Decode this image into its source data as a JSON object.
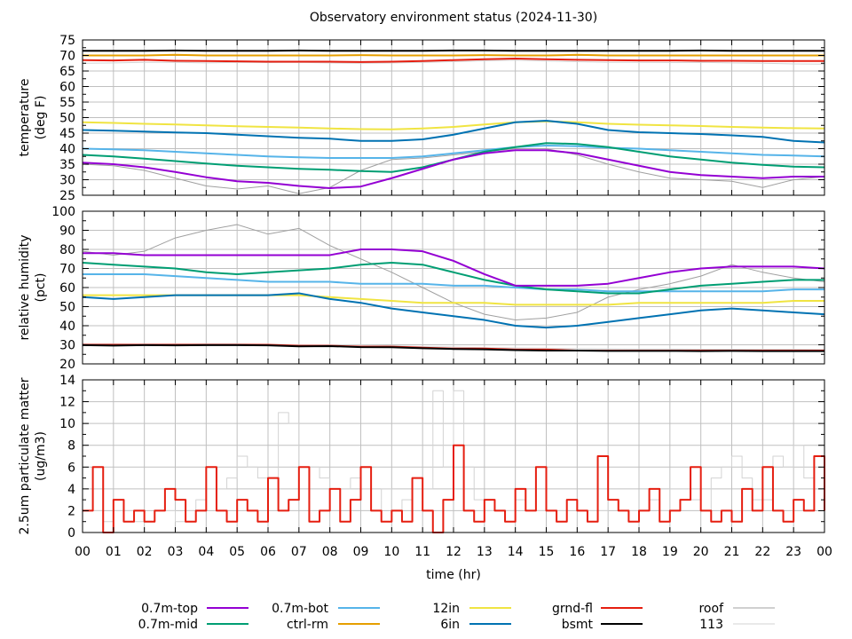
{
  "chart_data": {
    "title": "Observatory environment status (2024-11-30)",
    "xlabel": "time (hr)",
    "x_ticks": [
      "00",
      "01",
      "02",
      "03",
      "04",
      "05",
      "06",
      "07",
      "08",
      "09",
      "10",
      "11",
      "12",
      "13",
      "14",
      "15",
      "16",
      "17",
      "18",
      "19",
      "20",
      "21",
      "22",
      "23",
      "00"
    ],
    "xlim": [
      0,
      24
    ],
    "grid": true,
    "legend_placement": "bottom",
    "legend": [
      {
        "name": "0.7m-top",
        "color": "#9400d3"
      },
      {
        "name": "0.7m-mid",
        "color": "#009e73"
      },
      {
        "name": "0.7m-bot",
        "color": "#56b4e9"
      },
      {
        "name": "ctrl-rm",
        "color": "#e69f00"
      },
      {
        "name": "12in",
        "color": "#f0e442"
      },
      {
        "name": "6in",
        "color": "#0072b2"
      },
      {
        "name": "grnd-fl",
        "color": "#e51e10"
      },
      {
        "name": "bsmt",
        "color": "#000000"
      },
      {
        "name": "roof",
        "color": "#a0a0a0"
      },
      {
        "name": "113",
        "color": "#d3d3d3"
      }
    ],
    "panels": [
      {
        "type": "line",
        "ylabel": [
          "temperature",
          "(deg F)"
        ],
        "ylim": [
          25,
          75
        ],
        "yticks": [
          25,
          30,
          35,
          40,
          45,
          50,
          55,
          60,
          65,
          70,
          75
        ],
        "series": [
          {
            "name": "113",
            "values": [
              67.5,
              67.6,
              67.8,
              67.8,
              67.6,
              67.8,
              67.7,
              67.8,
              67.6,
              67.5,
              67.6,
              67.8,
              68,
              68.3,
              68.5,
              68.2,
              68,
              67.8,
              67.8,
              67.7,
              67.8,
              67.6,
              67.5,
              67.3,
              67.2
            ]
          },
          {
            "name": "roof",
            "values": [
              35,
              34.5,
              33,
              30.5,
              28,
              27,
              28,
              25.5,
              27.5,
              33,
              36.5,
              37,
              38,
              39,
              40,
              40,
              38,
              35,
              32.5,
              30.5,
              30,
              29.5,
              27.5,
              30,
              31
            ]
          },
          {
            "name": "bsmt",
            "values": [
              71.5,
              71.5,
              71.5,
              71.6,
              71.5,
              71.5,
              71.5,
              71.6,
              71.5,
              71.5,
              71.5,
              71.5,
              71.6,
              71.6,
              71.5,
              71.5,
              71.5,
              71.5,
              71.5,
              71.5,
              71.6,
              71.5,
              71.5,
              71.5,
              71.5
            ]
          },
          {
            "name": "ctrl-rm",
            "values": [
              70,
              70,
              70,
              70.2,
              70,
              70,
              70,
              70,
              70,
              70.1,
              70,
              70,
              70,
              70.1,
              70,
              70,
              70.2,
              70,
              70,
              70,
              70,
              70,
              70,
              70,
              70
            ]
          },
          {
            "name": "grnd-fl",
            "values": [
              68.5,
              68.4,
              68.6,
              68.3,
              68.2,
              68.1,
              68,
              68,
              68,
              67.9,
              68,
              68.2,
              68.5,
              68.8,
              69,
              68.8,
              68.6,
              68.5,
              68.4,
              68.4,
              68.3,
              68.3,
              68.2,
              68.2,
              68.2
            ]
          },
          {
            "name": "12in",
            "values": [
              48.5,
              48.3,
              48,
              47.8,
              47.5,
              47.2,
              47,
              46.8,
              46.5,
              46.3,
              46.2,
              46.5,
              47,
              47.8,
              48.5,
              48.8,
              48.5,
              48,
              47.7,
              47.5,
              47.3,
              47,
              46.8,
              46.6,
              46.5
            ]
          },
          {
            "name": "6in",
            "values": [
              46,
              45.8,
              45.5,
              45.2,
              45,
              44.5,
              44,
              43.5,
              43.2,
              42.5,
              42.5,
              43,
              44.5,
              46.5,
              48.5,
              49,
              48,
              46,
              45.3,
              45,
              44.7,
              44.3,
              43.8,
              42.5,
              42
            ]
          },
          {
            "name": "0.7m-bot",
            "values": [
              40,
              39.8,
              39.5,
              39,
              38.5,
              38,
              37.5,
              37.2,
              37,
              37,
              37,
              37.5,
              38.5,
              39.5,
              40.5,
              41,
              40.8,
              40.3,
              40,
              39.5,
              39,
              38.5,
              38,
              37.8,
              37.5
            ]
          },
          {
            "name": "0.7m-mid",
            "values": [
              38,
              37.5,
              36.8,
              36,
              35.2,
              34.5,
              34,
              33.5,
              33.2,
              32.8,
              32.5,
              34,
              36.5,
              39,
              40.5,
              41.8,
              41.5,
              40.5,
              39,
              37.5,
              36.5,
              35.5,
              34.8,
              34.2,
              34
            ]
          },
          {
            "name": "0.7m-top",
            "values": [
              35.5,
              35,
              34,
              32.5,
              30.8,
              29.5,
              29,
              28,
              27.3,
              27.8,
              30.5,
              33.5,
              36.5,
              38.5,
              39.5,
              39.5,
              38.5,
              36.5,
              34.5,
              32.5,
              31.5,
              31,
              30.5,
              31,
              31
            ]
          }
        ]
      },
      {
        "type": "line",
        "ylabel": [
          "relative humidity",
          "(pct)"
        ],
        "ylim": [
          20,
          100
        ],
        "yticks": [
          20,
          30,
          40,
          50,
          60,
          70,
          80,
          90,
          100
        ],
        "series": [
          {
            "name": "113",
            "values": [
              30.5,
              30.5,
              30.4,
              30.5,
              30.5,
              30.5,
              30.3,
              30,
              30,
              29.8,
              29.5,
              29,
              28.8,
              28.5,
              28.3,
              28.2,
              28,
              27.9,
              27.8,
              27.8,
              27.7,
              27.7,
              27.6,
              27.6,
              27.5
            ]
          },
          {
            "name": "roof",
            "values": [
              79,
              77,
              79,
              86,
              90,
              93,
              88,
              91,
              82,
              75,
              68,
              60,
              52,
              46,
              43,
              44,
              47,
              55,
              59,
              62,
              66,
              72,
              68,
              65,
              63
            ]
          },
          {
            "name": "grnd-fl",
            "values": [
              30,
              30,
              30,
              30,
              30,
              30,
              30,
              29.5,
              29.5,
              29,
              29,
              28.5,
              28,
              28,
              27.5,
              27.5,
              27,
              27,
              27,
              27,
              27,
              27,
              27,
              27,
              27
            ]
          },
          {
            "name": "bsmt",
            "values": [
              29.8,
              29.6,
              29.8,
              29.7,
              29.8,
              29.8,
              29.7,
              29.2,
              29.3,
              28.8,
              28.7,
              28.2,
              27.8,
              27.6,
              27.2,
              27,
              27,
              26.8,
              26.8,
              26.8,
              26.7,
              26.8,
              26.7,
              26.7,
              26.7
            ]
          },
          {
            "name": "12in",
            "values": [
              56,
              56,
              56,
              56,
              56,
              56,
              56,
              56,
              55,
              54,
              53,
              52,
              52,
              52,
              51,
              51,
              51,
              51,
              52,
              52,
              52,
              52,
              52,
              53,
              53
            ]
          },
          {
            "name": "6in",
            "values": [
              55,
              54,
              55,
              56,
              56,
              56,
              56,
              57,
              54,
              52,
              49,
              47,
              45,
              43,
              40,
              39,
              40,
              42,
              44,
              46,
              48,
              49,
              48,
              47,
              46
            ]
          },
          {
            "name": "0.7m-bot",
            "values": [
              67,
              67,
              67,
              66,
              65,
              64,
              63,
              63,
              63,
              62,
              62,
              62,
              61,
              61,
              60,
              59,
              59,
              58,
              58,
              58,
              58,
              58,
              58,
              59,
              59
            ]
          },
          {
            "name": "0.7m-mid",
            "values": [
              73,
              72,
              71,
              70,
              68,
              67,
              68,
              69,
              70,
              72,
              73,
              72,
              68,
              64,
              61,
              59,
              58,
              57,
              57,
              59,
              61,
              62,
              63,
              64,
              64
            ]
          },
          {
            "name": "0.7m-top",
            "values": [
              78,
              78,
              77,
              77,
              77,
              77,
              77,
              77,
              77,
              80,
              80,
              79,
              74,
              67,
              61,
              61,
              61,
              62,
              65,
              68,
              70,
              71,
              71,
              71,
              70
            ]
          }
        ]
      },
      {
        "type": "line",
        "ylabel": [
          "2.5um particulate matter",
          "(ug/m3)"
        ],
        "ylim": [
          0,
          14
        ],
        "yticks": [
          0,
          2,
          4,
          6,
          8,
          10,
          12,
          14
        ],
        "step": true,
        "series": [
          {
            "name": "113",
            "values": [
              2,
              2,
              1,
              2,
              2,
              1,
              1,
              2,
              2,
              1,
              2,
              3,
              4,
              4,
              5,
              7,
              6,
              5,
              4,
              11,
              10,
              6,
              6,
              5,
              4,
              4,
              5,
              4,
              2,
              4,
              2,
              3,
              4,
              4,
              13,
              6,
              13,
              6,
              3,
              2,
              2,
              2,
              3,
              2,
              2,
              2,
              2,
              3,
              2,
              2,
              2,
              3,
              2,
              2,
              2,
              3,
              2,
              4,
              4,
              3,
              2,
              5,
              6,
              7,
              5,
              3,
              3,
              7,
              6,
              8,
              5,
              4,
              4
            ]
          },
          {
            "name": "grnd-fl",
            "values": [
              2,
              6,
              0,
              3,
              1,
              2,
              1,
              2,
              4,
              3,
              1,
              2,
              6,
              2,
              1,
              3,
              2,
              1,
              5,
              2,
              3,
              6,
              1,
              2,
              4,
              1,
              3,
              6,
              2,
              1,
              2,
              1,
              5,
              2,
              0,
              3,
              8,
              2,
              1,
              3,
              2,
              1,
              4,
              2,
              6,
              2,
              1,
              3,
              2,
              1,
              7,
              3,
              2,
              1,
              2,
              4,
              1,
              2,
              3,
              6,
              2,
              1,
              2,
              1,
              4,
              2,
              6,
              2,
              1,
              3,
              2,
              7,
              2
            ]
          }
        ]
      }
    ]
  }
}
